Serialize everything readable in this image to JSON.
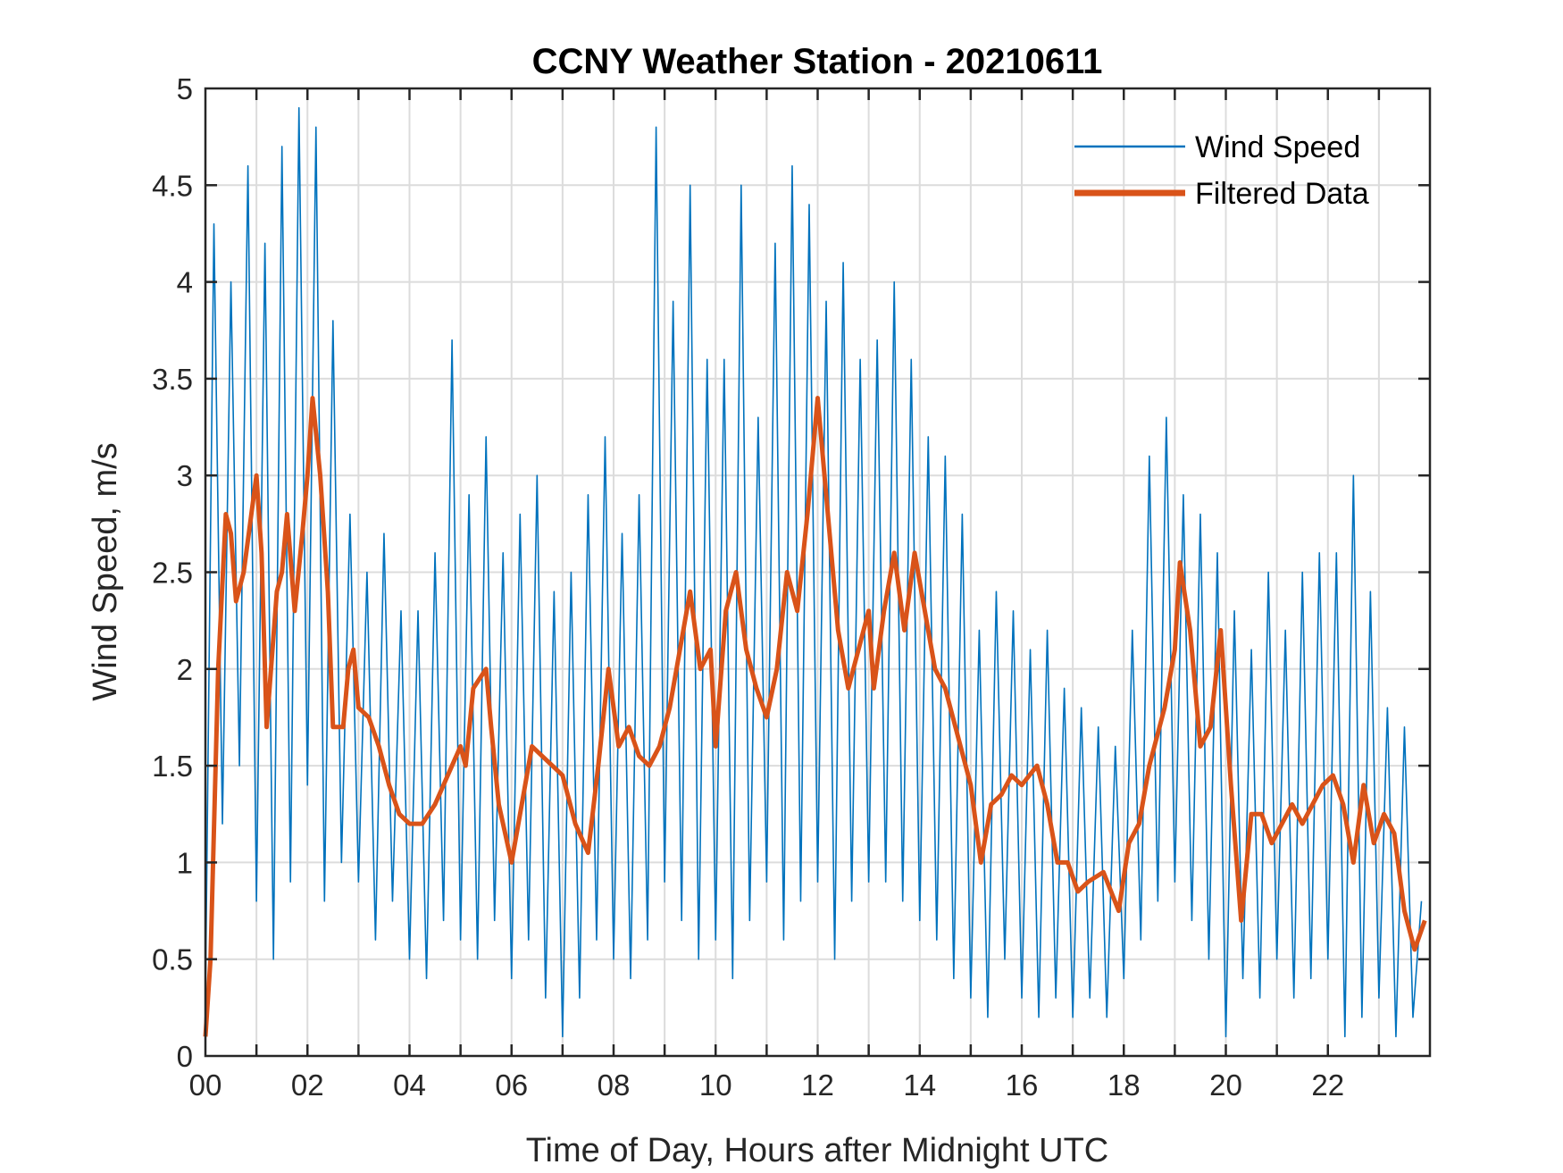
{
  "chart_data": {
    "type": "line",
    "title": "CCNY Weather Station - 20210611",
    "xlabel": "Time of Day, Hours after Midnight UTC",
    "ylabel": "Wind Speed, m/s",
    "xlim": [
      0,
      24
    ],
    "ylim": [
      0,
      5
    ],
    "grid": true,
    "legend_position": "top-right",
    "x_ticks": [
      0,
      2,
      4,
      6,
      8,
      10,
      12,
      14,
      16,
      18,
      20,
      22
    ],
    "x_tick_labels": [
      "00",
      "02",
      "04",
      "06",
      "08",
      "10",
      "12",
      "14",
      "16",
      "18",
      "20",
      "22"
    ],
    "y_ticks": [
      0,
      0.5,
      1,
      1.5,
      2,
      2.5,
      3,
      3.5,
      4,
      4.5,
      5
    ],
    "y_tick_labels": [
      "0",
      "0.5",
      "1",
      "1.5",
      "2",
      "2.5",
      "3",
      "3.5",
      "4",
      "4.5",
      "5"
    ],
    "series": [
      {
        "name": "Wind Speed",
        "color": "#0072BD",
        "x_step_hours": 0.16667,
        "values": [
          0.3,
          4.3,
          1.2,
          4.0,
          1.5,
          4.6,
          0.8,
          4.2,
          0.5,
          4.7,
          0.9,
          4.9,
          1.4,
          4.8,
          0.8,
          3.8,
          1.0,
          2.8,
          0.9,
          2.5,
          0.6,
          2.7,
          0.8,
          2.3,
          0.5,
          2.3,
          0.4,
          2.6,
          0.7,
          3.7,
          0.6,
          2.9,
          0.5,
          3.2,
          0.7,
          2.6,
          0.4,
          2.8,
          0.6,
          3.0,
          0.3,
          2.4,
          0.1,
          2.5,
          0.3,
          2.9,
          0.6,
          3.2,
          0.5,
          2.7,
          0.4,
          2.9,
          0.6,
          4.8,
          0.9,
          3.9,
          0.7,
          4.5,
          0.5,
          3.6,
          0.6,
          3.6,
          0.4,
          4.5,
          0.7,
          3.3,
          0.9,
          4.2,
          0.6,
          4.6,
          0.8,
          4.4,
          0.9,
          3.9,
          0.5,
          4.1,
          0.8,
          3.6,
          0.9,
          3.7,
          0.9,
          4.0,
          0.8,
          3.6,
          0.7,
          3.2,
          0.6,
          3.1,
          0.4,
          2.8,
          0.3,
          2.2,
          0.2,
          2.4,
          0.5,
          2.3,
          0.3,
          2.1,
          0.2,
          2.2,
          0.3,
          1.9,
          0.2,
          1.8,
          0.3,
          1.7,
          0.2,
          1.6,
          0.4,
          2.2,
          0.6,
          3.1,
          0.8,
          3.3,
          0.9,
          2.9,
          0.7,
          2.8,
          0.5,
          2.6,
          0.1,
          2.3,
          0.4,
          2.1,
          0.3,
          2.5,
          0.5,
          2.2,
          0.3,
          2.5,
          0.4,
          2.6,
          0.5,
          2.6,
          0.1,
          3.0,
          0.2,
          2.4,
          0.3,
          1.8,
          0.1,
          1.7,
          0.2,
          0.8
        ]
      },
      {
        "name": "Filtered Data",
        "color": "#D95319",
        "x": [
          0,
          0.1,
          0.25,
          0.4,
          0.5,
          0.6,
          0.75,
          0.9,
          1.0,
          1.1,
          1.2,
          1.4,
          1.5,
          1.6,
          1.75,
          1.9,
          2.0,
          2.1,
          2.25,
          2.4,
          2.5,
          2.7,
          2.8,
          2.9,
          3.0,
          3.2,
          3.4,
          3.6,
          3.8,
          4.0,
          4.25,
          4.5,
          4.75,
          5.0,
          5.1,
          5.25,
          5.5,
          5.6,
          5.75,
          6.0,
          6.2,
          6.4,
          6.6,
          6.8,
          7.0,
          7.25,
          7.5,
          7.7,
          7.9,
          8.1,
          8.3,
          8.5,
          8.7,
          8.9,
          9.1,
          9.3,
          9.5,
          9.7,
          9.9,
          10.0,
          10.2,
          10.4,
          10.6,
          10.8,
          11.0,
          11.2,
          11.4,
          11.6,
          11.8,
          12.0,
          12.2,
          12.4,
          12.6,
          12.8,
          13.0,
          13.1,
          13.3,
          13.5,
          13.7,
          13.9,
          14.1,
          14.3,
          14.5,
          14.7,
          15.0,
          15.2,
          15.4,
          15.6,
          15.8,
          16.0,
          16.3,
          16.5,
          16.7,
          16.9,
          17.1,
          17.3,
          17.6,
          17.9,
          18.1,
          18.3,
          18.5,
          18.8,
          19.0,
          19.1,
          19.3,
          19.5,
          19.7,
          19.9,
          20.1,
          20.3,
          20.5,
          20.7,
          20.9,
          21.1,
          21.3,
          21.5,
          21.7,
          21.9,
          22.1,
          22.3,
          22.5,
          22.7,
          22.9,
          23.1,
          23.3,
          23.5,
          23.7,
          23.9
        ],
        "values": [
          0.1,
          0.5,
          2.0,
          2.8,
          2.7,
          2.35,
          2.5,
          2.8,
          3.0,
          2.6,
          1.7,
          2.4,
          2.5,
          2.8,
          2.3,
          2.7,
          3.0,
          3.4,
          3.0,
          2.4,
          1.7,
          1.7,
          2.0,
          2.1,
          1.8,
          1.75,
          1.6,
          1.4,
          1.25,
          1.2,
          1.2,
          1.3,
          1.45,
          1.6,
          1.5,
          1.9,
          2.0,
          1.7,
          1.3,
          1.0,
          1.3,
          1.6,
          1.55,
          1.5,
          1.45,
          1.2,
          1.05,
          1.5,
          2.0,
          1.6,
          1.7,
          1.55,
          1.5,
          1.6,
          1.8,
          2.1,
          2.4,
          2.0,
          2.1,
          1.6,
          2.3,
          2.5,
          2.1,
          1.9,
          1.75,
          2.0,
          2.5,
          2.3,
          2.8,
          3.4,
          2.8,
          2.2,
          1.9,
          2.1,
          2.3,
          1.9,
          2.3,
          2.6,
          2.2,
          2.6,
          2.3,
          2.0,
          1.9,
          1.7,
          1.4,
          1.0,
          1.3,
          1.35,
          1.45,
          1.4,
          1.5,
          1.3,
          1.0,
          1.0,
          0.85,
          0.9,
          0.95,
          0.75,
          1.1,
          1.2,
          1.5,
          1.8,
          2.1,
          2.55,
          2.2,
          1.6,
          1.7,
          2.2,
          1.4,
          0.7,
          1.25,
          1.25,
          1.1,
          1.2,
          1.3,
          1.2,
          1.3,
          1.4,
          1.45,
          1.3,
          1.0,
          1.4,
          1.1,
          1.25,
          1.15,
          0.75,
          0.55,
          0.7
        ]
      }
    ]
  }
}
